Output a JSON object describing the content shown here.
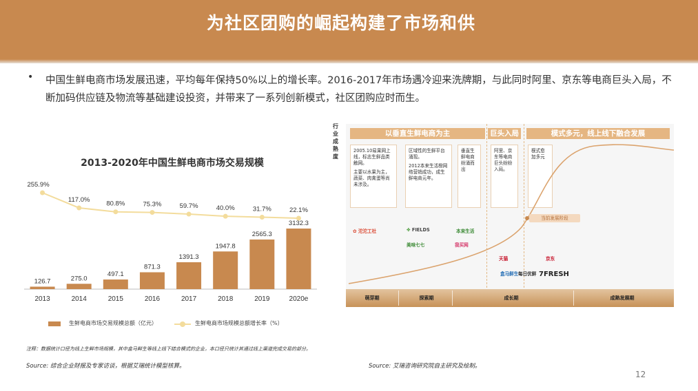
{
  "header": {
    "title": "为社区团购的崛起构建了市场和供"
  },
  "intro": {
    "bullet": "•",
    "text": "中国生鲜电商市场发展迅速，平均每年保持50%以上的增长率。2016-2017年市场遇冷迎来洗牌期，与此同时阿里、京东等电商巨头入局，不断加码供应链及物流等基础建设投资，并带来了一系列创新模式，社区团购应时而生。"
  },
  "chart": {
    "title": "2013-2020年中国生鲜电商市场交易规模",
    "legend_bar": "生鲜电商市场交易规模总额（亿元）",
    "legend_line": "生鲜电商市场规模总额增长率（%）"
  },
  "chart_data": {
    "type": "bar",
    "title": "2013-2020年中国生鲜电商市场交易规模",
    "categories": [
      "2013",
      "2014",
      "2015",
      "2016",
      "2017",
      "2018",
      "2019",
      "2020e"
    ],
    "series": [
      {
        "name": "生鲜电商市场交易规模总额（亿元）",
        "type": "bar",
        "values": [
          126.7,
          275.0,
          497.1,
          871.3,
          1391.3,
          1947.8,
          2565.3,
          3132.3
        ],
        "labels": [
          "126.7",
          "275.0",
          "497.1",
          "871.3",
          "1391.3",
          "1947.8",
          "2565.3",
          "3132.3"
        ]
      },
      {
        "name": "生鲜电商市场规模总额增长率（%）",
        "type": "line",
        "values": [
          255.9,
          117.0,
          80.8,
          75.3,
          59.7,
          40.0,
          31.7,
          22.1
        ],
        "labels": [
          "255.9%",
          "117.0%",
          "80.8%",
          "75.3%",
          "59.7%",
          "40.0%",
          "31.7%",
          "22.1%"
        ]
      }
    ],
    "colors": {
      "bar": "#c8894f",
      "line": "#f3dc9c"
    }
  },
  "diagram": {
    "ylabel": "行业成熟度",
    "bands": [
      "以垂直生鲜电商为主",
      "巨头入局",
      "模式多元，线上线下融合发展"
    ],
    "boxes": [
      {
        "paras": [
          "2005.10易果网上线，标志生鲜品类触网。",
          "主要以水果为主，蔬菜、肉禽蛋等尚未涉及。"
        ]
      },
      {
        "paras": [
          "区域性的生鲜平台涌现。",
          "2012本来生活橙网络营销成功，成生鲜电商元年。"
        ]
      },
      {
        "paras": [
          "垂直生鲜电商纷涌而出"
        ]
      },
      {
        "paras": [
          "阿里、京东等电商巨头纷纷入局。"
        ]
      },
      {
        "paras": [
          "模式愈加多元"
        ]
      }
    ],
    "current_stage": "当前发展阶段",
    "stages": [
      "萌芽期",
      "探索期",
      "成长期",
      "成熟发展期"
    ],
    "logos": [
      "沱沱工社",
      "FIELDS",
      "本来生活",
      "美味七七",
      "我买网",
      "天猫",
      "京东",
      "盒马鲜生",
      "每日优鲜",
      "7FRESH"
    ]
  },
  "footer": {
    "note": "注释：数据统计口径为线上生鲜市场规模，其中盒马鲜生等线上线下结合模式的企业，本口径只统计其通过线上渠道完成交易的部分。",
    "source_left": "Source: 综合企业财报及专家访谈，根据艾瑞统计模型核算。",
    "source_right": "Source: 艾瑞咨询研究院自主研究及绘制。",
    "page": "12"
  }
}
